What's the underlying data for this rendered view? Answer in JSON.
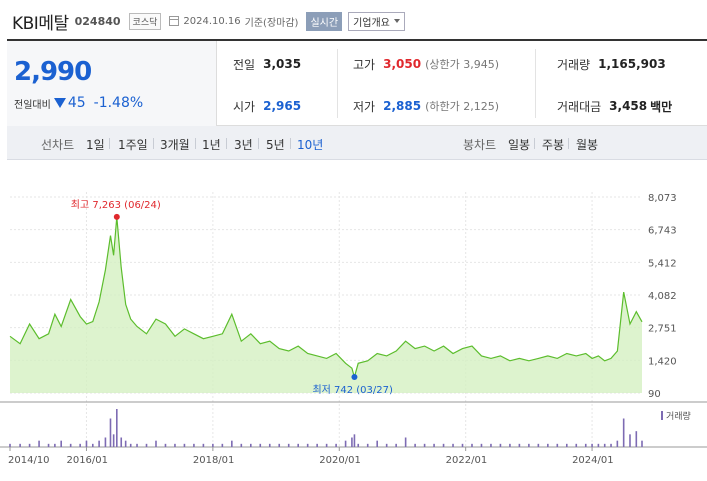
{
  "header": {
    "name": "KBI메탈",
    "code": "024840",
    "market": "코스닥",
    "date": "2024.10.16",
    "basis": "기준(장마감)",
    "realtime": "실시간",
    "company_btn": "기업개요"
  },
  "quote": {
    "price": "2,990",
    "change_label": "전일대비",
    "change": "45",
    "change_pct": "-1.48%",
    "prev_close_label": "전일",
    "prev_close": "3,035",
    "high_label": "고가",
    "high": "3,050",
    "upper_limit": "(상한가 3,945)",
    "volume_label": "거래량",
    "volume": "1,165,903",
    "open_label": "시가",
    "open": "2,965",
    "low_label": "저가",
    "low": "2,885",
    "lower_limit": "(하한가 2,125)",
    "amount_label": "거래대금",
    "amount": "3,458",
    "amount_unit": "백만"
  },
  "colors": {
    "up": "#e0282d",
    "down": "#1b61d1",
    "line": "#5cbd2d",
    "fill": "#d4f0c2",
    "volume": "#7d6bb3"
  },
  "period_tabs": {
    "label": "선차트",
    "options": [
      "1일",
      "1주일",
      "3개월",
      "1년",
      "3년",
      "5년",
      "10년"
    ],
    "active": "10년"
  },
  "candle_tabs": {
    "label": "봉차트",
    "options": [
      "일봉",
      "주봉",
      "월봉"
    ]
  },
  "chart_data": {
    "type": "area",
    "title": "",
    "y_ticks": [
      "8,073",
      "6,743",
      "5,412",
      "4,082",
      "2,751",
      "1,420",
      "90"
    ],
    "y_tick_values": [
      8073,
      6743,
      5412,
      4082,
      2751,
      1420,
      90
    ],
    "ylim": [
      90,
      8073
    ],
    "xlim": [
      2014.79,
      2024.79
    ],
    "x_ticks": [
      "2014/10",
      "2016/01",
      "2018/01",
      "2020/01",
      "2022/01",
      "2024/01"
    ],
    "x_tick_values": [
      2014.79,
      2016.0,
      2018.0,
      2020.0,
      2022.0,
      2024.0
    ],
    "max_label": "최고 7,263 (06/24)",
    "max_point": [
      2016.48,
      7263
    ],
    "min_label": "최저 742 (03/27)",
    "min_point": [
      2020.24,
      742
    ],
    "volume_label": "거래량",
    "x": [
      2014.79,
      2014.95,
      2015.1,
      2015.25,
      2015.4,
      2015.5,
      2015.6,
      2015.75,
      2015.9,
      2016.0,
      2016.1,
      2016.2,
      2016.3,
      2016.38,
      2016.43,
      2016.48,
      2016.55,
      2016.62,
      2016.7,
      2016.8,
      2016.95,
      2017.1,
      2017.25,
      2017.4,
      2017.55,
      2017.7,
      2017.85,
      2018.0,
      2018.15,
      2018.3,
      2018.45,
      2018.6,
      2018.75,
      2018.9,
      2019.05,
      2019.2,
      2019.35,
      2019.5,
      2019.65,
      2019.8,
      2019.95,
      2020.1,
      2020.2,
      2020.24,
      2020.3,
      2020.45,
      2020.6,
      2020.75,
      2020.9,
      2021.05,
      2021.2,
      2021.35,
      2021.5,
      2021.65,
      2021.8,
      2021.95,
      2022.1,
      2022.25,
      2022.4,
      2022.55,
      2022.7,
      2022.85,
      2023.0,
      2023.15,
      2023.3,
      2023.45,
      2023.6,
      2023.75,
      2023.9,
      2024.0,
      2024.1,
      2024.2,
      2024.3,
      2024.4,
      2024.5,
      2024.6,
      2024.7,
      2024.79
    ],
    "y": [
      2400,
      2100,
      2900,
      2300,
      2500,
      3300,
      2800,
      3900,
      3200,
      2900,
      3000,
      3800,
      5100,
      6500,
      5700,
      7263,
      5200,
      3700,
      3100,
      2800,
      2500,
      3100,
      2900,
      2400,
      2700,
      2500,
      2300,
      2400,
      2500,
      3300,
      2200,
      2500,
      2100,
      2200,
      1900,
      1800,
      2000,
      1700,
      1600,
      1500,
      1700,
      1300,
      1100,
      742,
      1300,
      1400,
      1700,
      1600,
      1800,
      2200,
      1900,
      2000,
      1800,
      2000,
      1700,
      1900,
      2000,
      1600,
      1500,
      1600,
      1400,
      1500,
      1400,
      1500,
      1600,
      1500,
      1700,
      1600,
      1700,
      1500,
      1600,
      1400,
      1500,
      1800,
      4200,
      2900,
      3400,
      2990
    ],
    "volume": [
      1,
      1,
      1,
      2,
      1,
      1,
      2,
      1,
      1,
      2,
      1,
      2,
      3,
      9,
      4,
      12,
      3,
      2,
      1,
      1,
      1,
      2,
      1,
      1,
      1,
      1,
      1,
      1,
      1,
      2,
      1,
      1,
      1,
      1,
      1,
      1,
      1,
      1,
      1,
      1,
      1,
      2,
      3,
      4,
      1,
      1,
      2,
      1,
      1,
      3,
      1,
      1,
      1,
      1,
      1,
      1,
      1,
      1,
      1,
      1,
      1,
      1,
      1,
      1,
      1,
      1,
      1,
      1,
      1,
      1,
      1,
      1,
      1,
      2,
      9,
      4,
      5,
      2
    ]
  }
}
